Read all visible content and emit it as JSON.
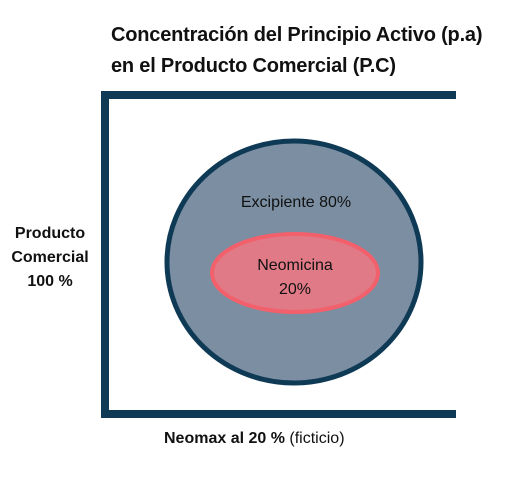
{
  "title": {
    "line1": "Concentración del Principio Activo (p.a)",
    "line2": "en el Producto Comercial (P.C)"
  },
  "side_label": {
    "line1": "Producto",
    "line2": "Comercial",
    "line3": "100 %"
  },
  "outer_circle": {
    "label": "Excipiente 80%",
    "fill": "#7b8ea2",
    "stroke": "#0f3a55"
  },
  "inner_ellipse": {
    "line1": "Neomicina",
    "line2": "20%",
    "fill": "#e07a86",
    "stroke": "#f2606c"
  },
  "frame": {
    "stroke": "#0f3a55"
  },
  "caption": {
    "bold": "Neomax al 20 %",
    "normal": "(ficticio)"
  }
}
